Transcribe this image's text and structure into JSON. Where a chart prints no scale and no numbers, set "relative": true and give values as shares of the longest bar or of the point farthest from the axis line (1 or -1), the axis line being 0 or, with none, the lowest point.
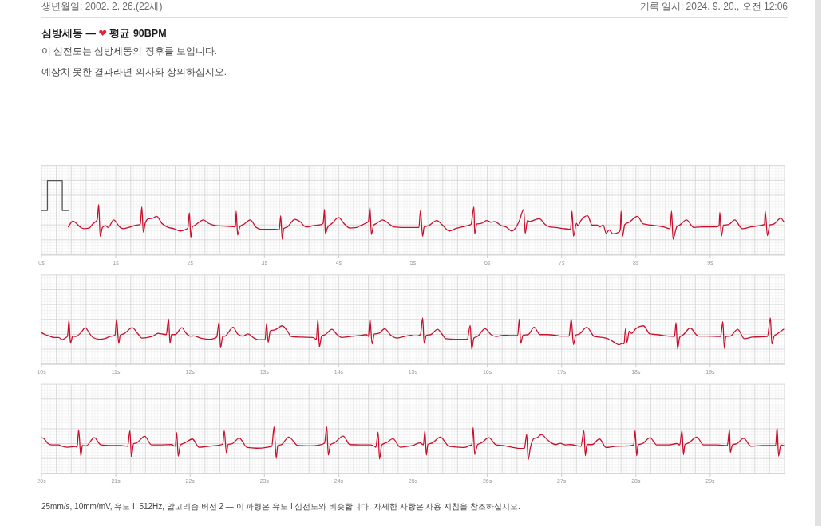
{
  "chart_data": [
    {
      "type": "line",
      "title": "심방세동 — ❤ 평균 90BPM",
      "subtitle": "이 심전도는 심방세동의 징후를 보입니다.",
      "annotations": [
        "예상치 못한 결과라면 의사와 상의하십시오.",
        "생년월일: 2002. 2. 26.(22세)",
        "기록 일시: 2024. 9. 20., 오전 12:06",
        "25mm/s, 10mm/mV, 유도 I, 512Hz, 알고리즘 버전 2 — 이 파형은 유도 I 심전도와 비슷합니다. 자세한 사항은 사용 지침을 참조하십시오."
      ],
      "relative": true,
      "grid": true,
      "xlim": [
        0,
        10
      ],
      "xticks": [
        {
          "value": 0,
          "label": "0s"
        },
        {
          "value": 1,
          "label": "1s"
        },
        {
          "value": 2,
          "label": "2s"
        },
        {
          "value": 3,
          "label": "3s"
        },
        {
          "value": 4,
          "label": "4s"
        },
        {
          "value": 5,
          "label": "5s"
        },
        {
          "value": 6,
          "label": "6s"
        },
        {
          "value": 7,
          "label": "7s"
        },
        {
          "value": 8,
          "label": "8s"
        },
        {
          "value": 9,
          "label": "9s"
        }
      ],
      "series": [
        {
          "color": "#555555",
          "x": [
            0,
            0.08,
            0.08,
            0.28,
            0.28,
            0.36
          ],
          "values": [
            0.49,
            0.49,
            1,
            1,
            0.49,
            0.49
          ]
        },
        {
          "color": "#c8102e",
          "x": [
            0.36,
            0.38,
            0.42,
            0.53,
            0.57,
            0.64,
            0.69,
            0.75,
            0.77,
            0.79,
            0.82,
            0.86,
            0.9,
            0.97,
            1.06,
            1.1,
            1.17,
            1.28,
            1.33,
            1.35,
            1.37,
            1.4,
            1.44,
            1.5,
            1.55,
            1.62,
            1.71,
            1.78,
            1.87,
            1.93,
            1.97,
            1.99,
            2.01,
            2.03,
            2.07,
            2.18,
            2.25,
            2.36,
            2.5,
            2.61,
            2.62,
            2.64,
            2.67,
            2.73,
            2.81,
            2.89,
            2.95,
            3.14,
            3.2,
            3.22,
            3.24,
            3.26,
            3.31,
            3.41,
            3.48,
            3.56,
            3.66,
            3.77,
            3.79,
            3.81,
            3.82,
            3.85,
            3.91,
            4.0,
            4.07,
            4.15,
            4.24,
            4.29,
            4.36,
            4.4,
            4.42,
            4.44,
            4.47,
            4.51,
            4.59,
            4.67,
            4.74,
            4.86,
            5.0,
            5.08,
            5.1,
            5.13,
            5.15,
            5.21,
            5.32,
            5.39,
            5.49,
            5.57,
            5.66,
            5.78,
            5.82,
            5.83,
            5.86,
            5.92,
            5.99,
            6.05,
            6.1,
            6.19,
            6.25,
            6.33,
            6.39,
            6.43,
            6.49,
            6.51,
            6.54,
            6.57,
            6.66,
            6.7,
            6.78,
            6.84,
            6.92,
            7.03,
            7.12,
            7.14,
            7.16,
            7.2,
            7.22,
            7.26,
            7.35,
            7.41,
            7.48,
            7.51,
            7.56,
            7.6,
            7.64,
            7.69,
            7.77,
            7.79,
            7.8,
            7.82,
            7.85,
            7.91,
            8.02,
            8.1,
            8.21,
            8.37,
            8.46,
            8.48,
            8.5,
            8.55,
            8.59,
            8.68,
            8.78,
            8.91,
            9.09,
            9.12,
            9.13,
            9.15,
            9.18,
            9.25,
            9.33,
            9.43,
            9.55,
            9.7,
            9.73,
            9.74,
            9.77,
            9.8,
            9.86,
            9.95,
            9.99
          ],
          "values": [
            0.21,
            0.25,
            0.31,
            0.2,
            0.18,
            0.19,
            0.26,
            0.33,
            0.59,
            0.05,
            0.2,
            0.23,
            0.2,
            0.33,
            0.2,
            0.18,
            0.2,
            0.24,
            0.25,
            0.55,
            0.12,
            0.29,
            0.35,
            0.36,
            0.39,
            0.27,
            0.2,
            0.18,
            0.14,
            0.16,
            0.19,
            0.45,
            0.02,
            0.21,
            0.24,
            0.33,
            0.27,
            0.23,
            0.22,
            0.21,
            0.48,
            0.07,
            0.21,
            0.26,
            0.33,
            0.2,
            0.17,
            0.17,
            0.16,
            0.4,
            0,
            0.18,
            0.21,
            0.34,
            0.3,
            0.21,
            0.23,
            0.25,
            0.27,
            0.51,
            0.09,
            0.2,
            0.27,
            0.37,
            0.27,
            0.19,
            0.2,
            0.23,
            0.27,
            0.3,
            0.55,
            0.08,
            0.24,
            0.27,
            0.33,
            0.27,
            0.21,
            0.2,
            0.2,
            0.2,
            0.49,
            0.05,
            0.21,
            0.23,
            0.32,
            0.25,
            0.14,
            0.18,
            0.21,
            0.25,
            0.55,
            0.09,
            0.26,
            0.27,
            0.32,
            0.29,
            0.3,
            0.23,
            0.21,
            0.14,
            0.21,
            0.31,
            0.51,
            0.1,
            0.32,
            0.3,
            0.34,
            0.35,
            0.25,
            0.21,
            0.2,
            0.18,
            0.17,
            0.48,
            0.05,
            0.27,
            0.23,
            0.32,
            0.4,
            0.24,
            0.24,
            0.21,
            0.24,
            0.1,
            0.16,
            0.09,
            0.12,
            0.16,
            0.48,
            0.05,
            0.25,
            0.29,
            0.39,
            0.26,
            0.24,
            0.21,
            0.18,
            0.48,
            0,
            0.21,
            0.24,
            0.33,
            0.2,
            0.21,
            0.21,
            0.24,
            0.46,
            0.05,
            0.24,
            0.25,
            0.33,
            0.18,
            0.21,
            0.24,
            0.25,
            0.48,
            0.06,
            0.24,
            0.26,
            0.36,
            0.3
          ]
        }
      ]
    },
    {
      "type": "line",
      "relative": true,
      "grid": true,
      "xlim": [
        10,
        20
      ],
      "xticks": [
        {
          "value": 10,
          "label": "10s"
        },
        {
          "value": 11,
          "label": "11s"
        },
        {
          "value": 12,
          "label": "12s"
        },
        {
          "value": 13,
          "label": "13s"
        },
        {
          "value": 14,
          "label": "14s"
        },
        {
          "value": 15,
          "label": "15s"
        },
        {
          "value": 16,
          "label": "16s"
        },
        {
          "value": 17,
          "label": "17s"
        },
        {
          "value": 18,
          "label": "18s"
        },
        {
          "value": 19,
          "label": "19s"
        }
      ],
      "series": [
        {
          "color": "#c8102e",
          "x": [
            10.0,
            10.05,
            10.1,
            10.17,
            10.23,
            10.28,
            10.32,
            10.35,
            10.37,
            10.39,
            10.42,
            10.46,
            10.53,
            10.59,
            10.64,
            10.69,
            10.78,
            10.85,
            10.92,
            10.99,
            11.01,
            11.04,
            11.06,
            11.12,
            11.22,
            11.3,
            11.35,
            11.43,
            11.5,
            11.57,
            11.62,
            11.68,
            11.71,
            11.73,
            11.75,
            11.8,
            11.89,
            11.94,
            12.0,
            12.05,
            12.14,
            12.25,
            12.34,
            12.36,
            12.39,
            12.41,
            12.44,
            12.47,
            12.58,
            12.64,
            12.71,
            12.78,
            12.86,
            12.91,
            13.01,
            13.03,
            13.05,
            13.08,
            13.14,
            13.24,
            13.31,
            13.36,
            13.5,
            13.65,
            13.7,
            13.72,
            13.74,
            13.77,
            13.82,
            13.91,
            13.97,
            14.04,
            14.15,
            14.29,
            14.37,
            14.4,
            14.42,
            14.45,
            14.48,
            14.54,
            14.62,
            14.7,
            14.79,
            14.9,
            14.97,
            15.0,
            15.06,
            15.1,
            15.13,
            15.15,
            15.18,
            15.24,
            15.33,
            15.39,
            15.44,
            15.57,
            15.73,
            15.77,
            15.79,
            15.82,
            15.87,
            15.97,
            16.05,
            16.12,
            16.21,
            16.32,
            16.41,
            16.43,
            16.45,
            16.48,
            16.55,
            16.63,
            16.71,
            16.8,
            16.92,
            17.0,
            17.1,
            17.13,
            17.16,
            17.19,
            17.24,
            17.34,
            17.44,
            17.51,
            17.62,
            17.71,
            17.77,
            17.82,
            17.84,
            17.86,
            17.88,
            17.91,
            17.94,
            18.0,
            18.1,
            18.19,
            18.28,
            18.44,
            18.52,
            18.54,
            18.56,
            18.59,
            18.64,
            18.73,
            18.84,
            18.95,
            19.14,
            19.17,
            19.19,
            19.21,
            19.27,
            19.37,
            19.46,
            19.57,
            19.77,
            19.81,
            19.83,
            19.86,
            19.9,
            19.99
          ],
          "values": [
            0.53,
            0.47,
            0.43,
            0.38,
            0.38,
            0.31,
            0.36,
            0.42,
            0.93,
            0.19,
            0.42,
            0.41,
            0.53,
            0.69,
            0.53,
            0.38,
            0.32,
            0.34,
            0.41,
            0.45,
            0.96,
            0.19,
            0.45,
            0.51,
            0.69,
            0.49,
            0.36,
            0.38,
            0.42,
            0.51,
            0.49,
            0.47,
            0.97,
            0.19,
            0.47,
            0.47,
            0.69,
            0.53,
            0.42,
            0.43,
            0.36,
            0.32,
            0.36,
            0.41,
            0.87,
            0.05,
            0.41,
            0.42,
            0.7,
            0.49,
            0.42,
            0.49,
            0.36,
            0.31,
            0.31,
            0.83,
            0.22,
            0.59,
            0.62,
            0.75,
            0.58,
            0.41,
            0.39,
            0.38,
            0.32,
            0.96,
            0.08,
            0.42,
            0.47,
            0.64,
            0.49,
            0.38,
            0.41,
            0.44,
            0.47,
            0.41,
            0.97,
            0.17,
            0.49,
            0.51,
            0.66,
            0.45,
            0.36,
            0.42,
            0.45,
            0.43,
            0.43,
            0.47,
            1.0,
            0.19,
            0.45,
            0.47,
            0.64,
            0.49,
            0.34,
            0.32,
            0.32,
            0.76,
            0,
            0.36,
            0.42,
            0.66,
            0.47,
            0.41,
            0.45,
            0.44,
            0.45,
            0.96,
            0.19,
            0.45,
            0.47,
            0.7,
            0.47,
            0.47,
            0.45,
            0.42,
            0.42,
            0.96,
            0.15,
            0.45,
            0.49,
            0.7,
            0.41,
            0.39,
            0.34,
            0.22,
            0.14,
            0.19,
            0.17,
            0.66,
            0.22,
            0.58,
            0.51,
            0.66,
            0.75,
            0.49,
            0.47,
            0.42,
            0.41,
            0.85,
            0.01,
            0.39,
            0.47,
            0.68,
            0.42,
            0.42,
            0.41,
            0.88,
            0.03,
            0.41,
            0.42,
            0.64,
            0.34,
            0.39,
            0.41,
            1.0,
            0.17,
            0.42,
            0.49,
            0.64
          ]
        }
      ]
    },
    {
      "type": "line",
      "relative": true,
      "grid": true,
      "xlim": [
        20,
        30
      ],
      "xticks": [
        {
          "value": 20,
          "label": "20s"
        },
        {
          "value": 21,
          "label": "21s"
        },
        {
          "value": 22,
          "label": "22s"
        },
        {
          "value": 23,
          "label": "23s"
        },
        {
          "value": 24,
          "label": "24s"
        },
        {
          "value": 25,
          "label": "25s"
        },
        {
          "value": 26,
          "label": "26s"
        },
        {
          "value": 27,
          "label": "27s"
        },
        {
          "value": 28,
          "label": "28s"
        },
        {
          "value": 29,
          "label": "29s"
        }
      ],
      "series": [
        {
          "color": "#c8102e",
          "x": [
            20.0,
            20.03,
            20.08,
            20.14,
            20.23,
            20.28,
            20.35,
            20.46,
            20.48,
            20.5,
            20.53,
            20.55,
            20.6,
            20.71,
            20.8,
            20.92,
            21.07,
            21.16,
            21.19,
            21.21,
            21.24,
            21.28,
            21.39,
            21.48,
            21.6,
            21.75,
            21.8,
            21.82,
            21.84,
            21.87,
            21.93,
            22.03,
            22.12,
            22.25,
            22.41,
            22.44,
            22.46,
            22.49,
            22.51,
            22.57,
            22.66,
            22.77,
            22.89,
            23.04,
            23.1,
            23.13,
            23.16,
            23.18,
            23.23,
            23.33,
            23.45,
            23.61,
            23.75,
            23.81,
            23.84,
            23.86,
            23.89,
            23.94,
            24.06,
            24.15,
            24.29,
            24.43,
            24.48,
            24.5,
            24.53,
            24.55,
            24.58,
            24.65,
            24.73,
            24.83,
            24.93,
            25.0,
            25.05,
            25.1,
            25.14,
            25.16,
            25.18,
            25.2,
            25.26,
            25.37,
            25.44,
            25.48,
            25.62,
            25.69,
            25.76,
            25.79,
            25.81,
            25.83,
            25.87,
            25.92,
            26.02,
            26.12,
            26.21,
            26.33,
            26.44,
            26.5,
            26.53,
            26.55,
            26.58,
            26.63,
            26.67,
            26.73,
            26.78,
            26.85,
            26.92,
            26.98,
            27.05,
            27.12,
            27.26,
            27.3,
            27.32,
            27.34,
            27.41,
            27.51,
            27.6,
            27.73,
            27.91,
            27.97,
            27.99,
            28.01,
            28.03,
            28.09,
            28.19,
            28.28,
            28.44,
            28.55,
            28.59,
            28.62,
            28.64,
            28.66,
            28.71,
            28.82,
            28.91,
            29.09,
            29.23,
            29.26,
            29.27,
            29.3,
            29.36,
            29.45,
            29.55,
            29.7,
            29.88,
            29.9,
            29.92,
            29.95,
            29.99
          ],
          "values": [
            0.67,
            0.65,
            0.51,
            0.45,
            0.45,
            0.41,
            0.38,
            0.4,
            0.38,
            0.91,
            0.11,
            0.43,
            0.42,
            0.67,
            0.45,
            0.43,
            0.43,
            0.41,
            0.88,
            0.08,
            0.49,
            0.51,
            0.71,
            0.45,
            0.45,
            0.46,
            0.41,
            0.83,
            0.11,
            0.45,
            0.51,
            0.63,
            0.38,
            0.41,
            0.45,
            0.48,
            0.88,
            0.19,
            0.46,
            0.49,
            0.66,
            0.37,
            0.35,
            0.38,
            0.41,
            1.0,
            0.04,
            0.43,
            0.46,
            0.69,
            0.43,
            0.42,
            0.45,
            0.51,
            1.0,
            0.14,
            0.46,
            0.51,
            0.72,
            0.46,
            0.45,
            0.45,
            0.41,
            0.38,
            0.84,
            0.02,
            0.45,
            0.53,
            0.64,
            0.38,
            0.41,
            0.43,
            0.49,
            0.51,
            0.45,
            0.88,
            0.14,
            0.46,
            0.51,
            0.69,
            0.51,
            0.41,
            0.38,
            0.37,
            0.43,
            0.45,
            0.98,
            0.16,
            0.46,
            0.51,
            0.67,
            0.45,
            0.43,
            0.38,
            0.34,
            0.35,
            0.77,
            0,
            0.37,
            0.65,
            0.67,
            0.77,
            0.67,
            0.53,
            0.46,
            0.5,
            0.45,
            0.46,
            0.41,
            0.88,
            0.12,
            0.46,
            0.46,
            0.63,
            0.37,
            0.41,
            0.42,
            0.45,
            0.88,
            0.12,
            0.45,
            0.49,
            0.67,
            0.45,
            0.45,
            0.49,
            0.45,
            0.89,
            0.15,
            0.46,
            0.51,
            0.69,
            0.45,
            0.45,
            0.43,
            0.92,
            0.22,
            0.45,
            0.49,
            0.65,
            0.41,
            0.43,
            0.43,
            0.98,
            0.11,
            0.45,
            0.43
          ]
        }
      ]
    }
  ]
}
